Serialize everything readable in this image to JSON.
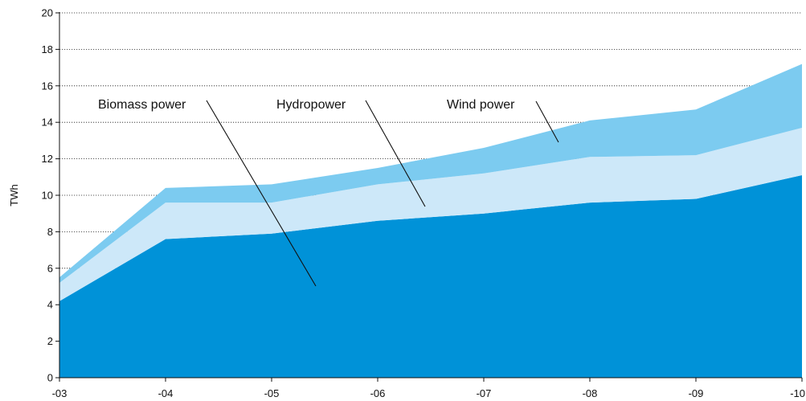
{
  "chart_data": {
    "type": "area",
    "stacked": true,
    "categories": [
      "-03",
      "-04",
      "-05",
      "-06",
      "-07",
      "-08",
      "-09",
      "-10"
    ],
    "ylabel": "TWh",
    "ylim": [
      0,
      20
    ],
    "yticks": [
      0,
      2,
      4,
      6,
      8,
      10,
      12,
      14,
      16,
      18,
      20
    ],
    "grid": "horizontal-dotted",
    "series": [
      {
        "name": "Biomass power",
        "color": "#0092d8",
        "values": [
          4.2,
          7.6,
          7.9,
          8.6,
          9.0,
          9.6,
          9.8,
          11.1
        ]
      },
      {
        "name": "Hydropower",
        "color": "#cde8f9",
        "values": [
          1.0,
          2.0,
          1.7,
          2.0,
          2.2,
          2.5,
          2.4,
          2.6
        ]
      },
      {
        "name": "Wind power",
        "color": "#7ccbf0",
        "values": [
          0.3,
          0.8,
          1.0,
          0.9,
          1.4,
          2.0,
          2.5,
          3.5
        ]
      }
    ]
  }
}
